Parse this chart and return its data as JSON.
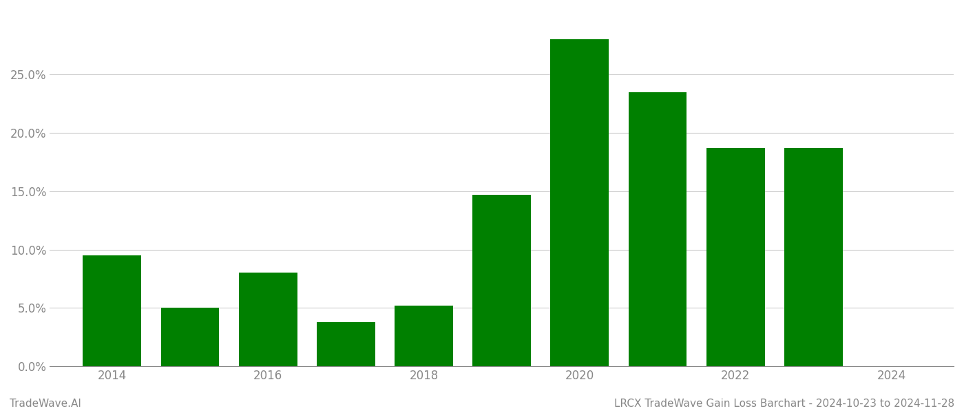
{
  "years": [
    2014,
    2015,
    2016,
    2017,
    2018,
    2019,
    2020,
    2021,
    2022,
    2023
  ],
  "values": [
    0.095,
    0.05,
    0.08,
    0.038,
    0.052,
    0.147,
    0.28,
    0.235,
    0.187,
    0.187
  ],
  "bar_color": "#008000",
  "background_color": "#ffffff",
  "grid_color": "#cccccc",
  "axis_color": "#888888",
  "tick_label_color": "#888888",
  "yticks": [
    0.0,
    0.05,
    0.1,
    0.15,
    0.2,
    0.25
  ],
  "ylim": [
    0.0,
    0.305
  ],
  "xlim_left": 2013.2,
  "xlim_right": 2024.8,
  "xtick_positions": [
    2014,
    2016,
    2018,
    2020,
    2022,
    2024
  ],
  "xtick_labels": [
    "2014",
    "2016",
    "2018",
    "2020",
    "2022",
    "2024"
  ],
  "footer_left": "TradeWave.AI",
  "footer_right": "LRCX TradeWave Gain Loss Barchart - 2024-10-23 to 2024-11-28",
  "footer_color": "#888888",
  "footer_fontsize": 11,
  "bar_width": 0.75
}
